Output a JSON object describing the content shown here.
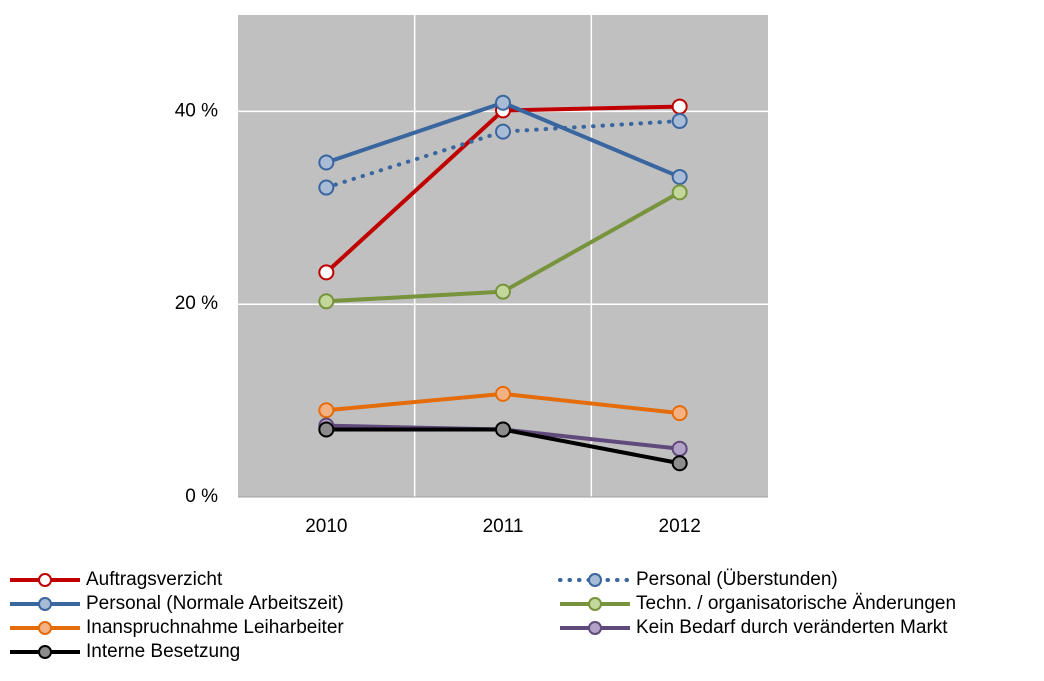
{
  "chart_data": {
    "type": "line",
    "categories": [
      "2010",
      "2011",
      "2012"
    ],
    "ylim": [
      0,
      50
    ],
    "yticks": [
      {
        "value": 0,
        "label": "0 %"
      },
      {
        "value": 20,
        "label": "20 %"
      },
      {
        "value": 40,
        "label": "40 %"
      }
    ],
    "grid": true,
    "plot_background": "#c0c0c0",
    "legend": "bottom",
    "series": [
      {
        "name": "Auftragsverzicht",
        "color": "#c00000",
        "marker_fill": "#ffffff",
        "values": [
          23.3,
          40.1,
          40.5
        ]
      },
      {
        "name": "Personal (Überstunden)",
        "color": "#3a66a0",
        "marker_fill": "#a9bcd6",
        "dash": "dotted",
        "values": [
          32.1,
          37.9,
          39.0
        ]
      },
      {
        "name": "Personal (Normale Arbeitszeit)",
        "color": "#3a66a0",
        "marker_fill": "#a9bcd6",
        "values": [
          34.7,
          40.9,
          33.2
        ]
      },
      {
        "name": "Techn. / organisatorische Änderungen",
        "color": "#77933c",
        "marker_fill": "#c3d69b",
        "values": [
          20.3,
          21.3,
          31.6
        ]
      },
      {
        "name": "Inanspruchnahme Leiharbeiter",
        "color": "#e46c0a",
        "marker_fill": "#f4b183",
        "values": [
          9.0,
          10.7,
          8.7
        ]
      },
      {
        "name": "Kein Bedarf durch veränderten Markt",
        "color": "#604a7b",
        "marker_fill": "#b3a2c7",
        "values": [
          7.4,
          7.0,
          5.0
        ]
      },
      {
        "name": "Interne Besetzung",
        "color": "#000000",
        "marker_fill": "#8c8c8c",
        "values": [
          7.0,
          7.0,
          3.5
        ]
      }
    ]
  }
}
